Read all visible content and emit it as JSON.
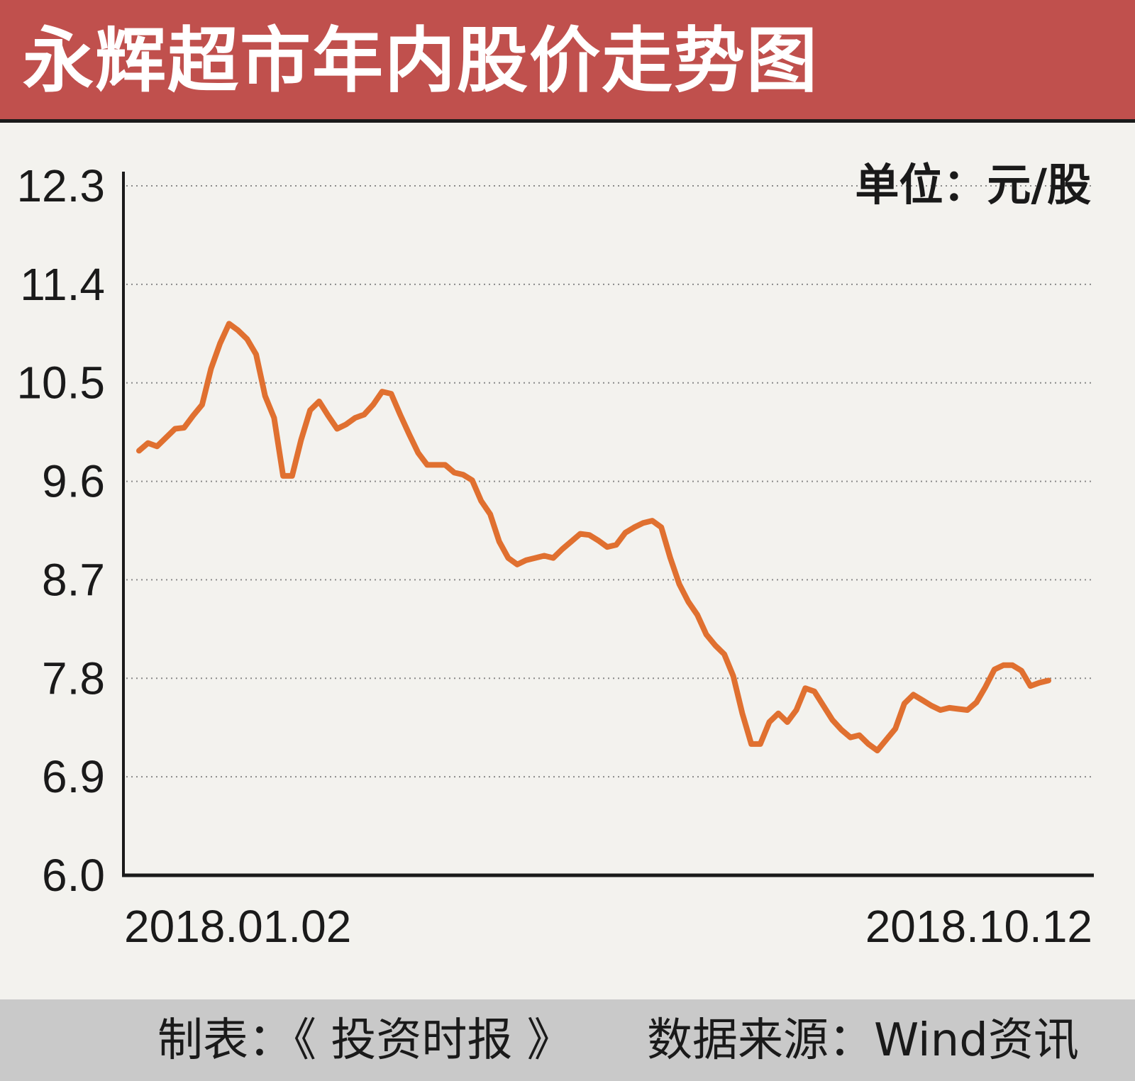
{
  "title": "永辉超市年内股价走势图",
  "footer": {
    "made_by": "制表：《 投资时报 》",
    "source": "数据来源：Wind资讯"
  },
  "colors": {
    "header_bg": "#c0504d",
    "line": "#e07030",
    "footer_bg": "#c9c9c9",
    "background": "#f3f2ee"
  },
  "chart_data": {
    "type": "line",
    "unit_label": "单位：元/股",
    "x_tick_labels": [
      "2018.01.02",
      "2018.10.12"
    ],
    "x_range": [
      "2018-01-02",
      "2018-10-12"
    ],
    "ylim": [
      6.0,
      12.3
    ],
    "y_ticks": [
      "6.0",
      "6.9",
      "7.8",
      "8.7",
      "9.6",
      "10.5",
      "11.4",
      "12.3"
    ],
    "grid": "horizontal dotted",
    "series": [
      {
        "values": [
          9.88,
          9.95,
          9.92,
          10.0,
          10.08,
          10.09,
          10.2,
          10.3,
          10.63,
          10.86,
          11.04,
          10.98,
          10.9,
          10.76,
          10.38,
          10.18,
          9.65,
          9.65,
          9.98,
          10.25,
          10.33,
          10.2,
          10.08,
          10.12,
          10.18,
          10.21,
          10.3,
          10.42,
          10.4,
          10.21,
          10.03,
          9.86,
          9.75,
          9.75,
          9.75,
          9.68,
          9.66,
          9.61,
          9.42,
          9.3,
          9.05,
          8.9,
          8.84,
          8.88,
          8.9,
          8.92,
          8.9,
          8.98,
          9.05,
          9.12,
          9.11,
          9.06,
          9.0,
          9.02,
          9.13,
          9.18,
          9.22,
          9.24,
          9.18,
          8.9,
          8.66,
          8.5,
          8.38,
          8.2,
          8.1,
          8.02,
          7.82,
          7.48,
          7.2,
          7.2,
          7.4,
          7.48,
          7.4,
          7.51,
          7.71,
          7.68,
          7.55,
          7.42,
          7.33,
          7.26,
          7.28,
          7.2,
          7.14,
          7.24,
          7.34,
          7.57,
          7.65,
          7.6,
          7.55,
          7.51,
          7.53,
          7.52,
          7.51,
          7.58,
          7.72,
          7.88,
          7.92,
          7.92,
          7.87,
          7.73,
          7.76,
          7.78
        ]
      }
    ]
  }
}
